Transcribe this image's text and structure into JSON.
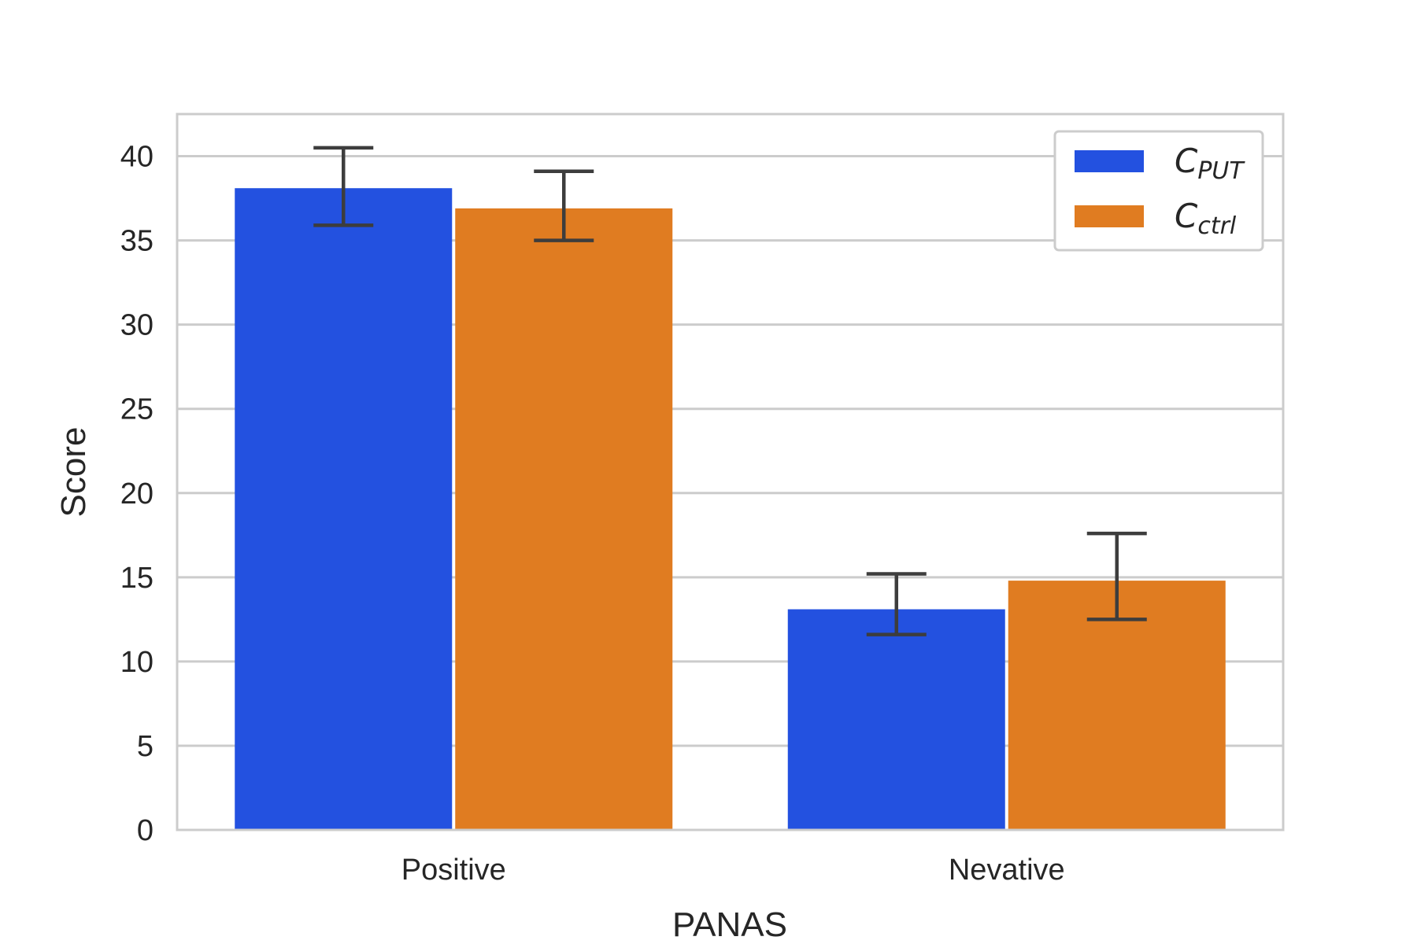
{
  "chart_data": {
    "type": "bar",
    "title": "",
    "xlabel": "PANAS",
    "ylabel": "Score",
    "categories": [
      "Positive",
      "Nevative"
    ],
    "ylim": [
      0,
      42.5
    ],
    "yticks": [
      0,
      5,
      10,
      15,
      20,
      25,
      30,
      35,
      40
    ],
    "grid": "horizontal",
    "legend_position": "top-right",
    "series": [
      {
        "name": "C",
        "name_subscript": "PUT",
        "color": "#2351e0",
        "values": [
          38.1,
          13.1
        ],
        "err_low": [
          35.9,
          11.6
        ],
        "err_high": [
          40.5,
          15.2
        ]
      },
      {
        "name": "C",
        "name_subscript": "ctrl",
        "color": "#e07c21",
        "values": [
          36.9,
          14.8
        ],
        "err_low": [
          35.0,
          12.5
        ],
        "err_high": [
          39.1,
          17.6
        ]
      }
    ]
  }
}
